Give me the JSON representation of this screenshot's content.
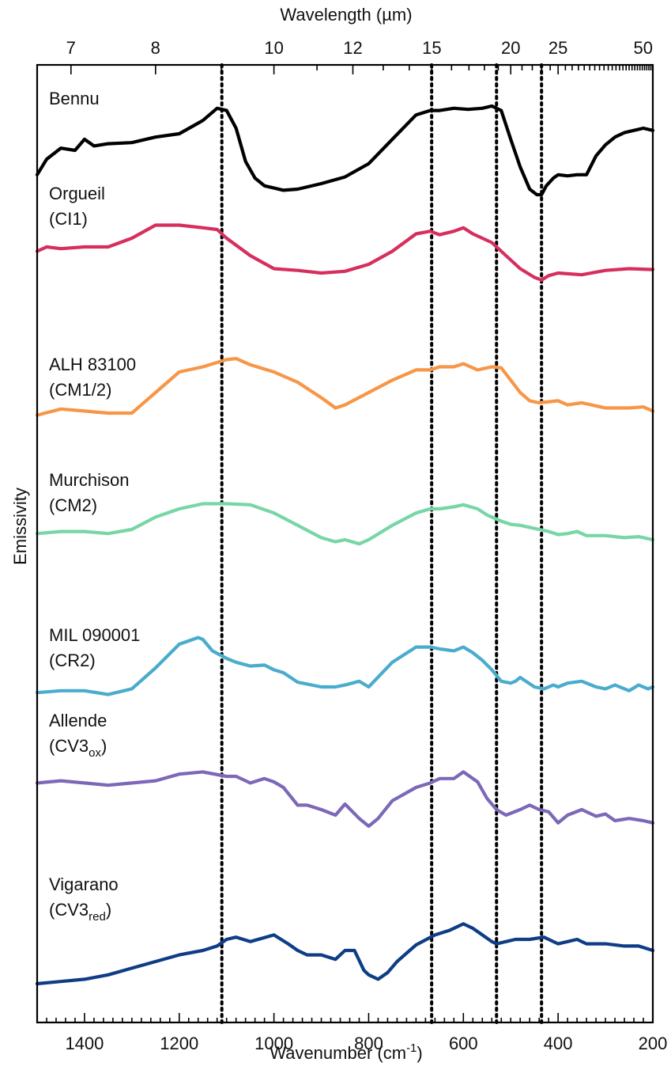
{
  "chart_data": {
    "type": "line",
    "title": "",
    "xlabel": "Wavenumber",
    "xlabel_unit": "(cm",
    "xlabel_unit_sup": "-1",
    "xlabel_unit_close": ")",
    "x2label": "Wavelength (µm)",
    "ylabel": "Emissivity",
    "xlim": [
      1500,
      200
    ],
    "x_reversed": true,
    "x_ticks": [
      1400,
      1200,
      1000,
      800,
      600,
      400,
      200
    ],
    "x2_ticks": [
      7,
      8,
      10,
      12,
      15,
      20,
      25,
      50
    ],
    "y_ticks_shown": false,
    "grid": false,
    "legend": "none (labels placed beside each curve)",
    "reference_lines_wavenumber": [
      1110,
      667,
      530,
      435
    ],
    "reference_line_style": "dotted",
    "series": [
      {
        "name": "Bennu",
        "label_line1": "Bennu",
        "label_line2": "",
        "label_line2_sub": "",
        "color": "#000000",
        "x": [
          1500,
          1480,
          1450,
          1420,
          1400,
          1380,
          1350,
          1300,
          1250,
          1200,
          1150,
          1120,
          1100,
          1080,
          1060,
          1040,
          1020,
          1000,
          980,
          950,
          900,
          850,
          800,
          750,
          700,
          670,
          650,
          620,
          590,
          560,
          540,
          520,
          500,
          480,
          460,
          445,
          435,
          425,
          410,
          400,
          380,
          360,
          340,
          320,
          300,
          280,
          260,
          240,
          220,
          200
        ],
        "y": [
          0.18,
          0.32,
          0.42,
          0.4,
          0.5,
          0.44,
          0.46,
          0.47,
          0.52,
          0.55,
          0.67,
          0.78,
          0.76,
          0.6,
          0.3,
          0.15,
          0.08,
          0.06,
          0.04,
          0.05,
          0.1,
          0.16,
          0.28,
          0.5,
          0.72,
          0.76,
          0.76,
          0.78,
          0.77,
          0.78,
          0.8,
          0.76,
          0.5,
          0.25,
          0.05,
          0.0,
          0.0,
          0.08,
          0.15,
          0.18,
          0.17,
          0.18,
          0.18,
          0.35,
          0.45,
          0.52,
          0.56,
          0.58,
          0.6,
          0.58
        ]
      },
      {
        "name": "Orgueil",
        "label_line1": "Orgueil",
        "label_line2": "(CI1)",
        "label_line2_sub": "",
        "color": "#d62f5e",
        "x": [
          1500,
          1480,
          1450,
          1400,
          1350,
          1300,
          1250,
          1200,
          1150,
          1120,
          1100,
          1050,
          1000,
          950,
          900,
          850,
          800,
          750,
          700,
          670,
          650,
          620,
          600,
          580,
          560,
          540,
          530,
          510,
          480,
          450,
          435,
          420,
          400,
          350,
          300,
          250,
          200
        ],
        "y": [
          0.25,
          0.3,
          0.28,
          0.3,
          0.3,
          0.4,
          0.55,
          0.55,
          0.52,
          0.5,
          0.4,
          0.2,
          0.05,
          0.03,
          0.0,
          0.02,
          0.1,
          0.25,
          0.45,
          0.48,
          0.44,
          0.48,
          0.52,
          0.45,
          0.4,
          0.35,
          0.3,
          0.2,
          0.05,
          -0.05,
          -0.08,
          -0.03,
          0.0,
          -0.02,
          0.03,
          0.05,
          0.04
        ]
      },
      {
        "name": "ALH 83100",
        "label_line1": "ALH 83100",
        "label_line2": "(CM1/2)",
        "label_line2_sub": "",
        "color": "#f79646",
        "x": [
          1500,
          1450,
          1400,
          1350,
          1300,
          1250,
          1200,
          1150,
          1100,
          1080,
          1050,
          1000,
          950,
          900,
          870,
          850,
          800,
          750,
          700,
          670,
          650,
          620,
          600,
          570,
          540,
          520,
          500,
          480,
          460,
          440,
          400,
          380,
          350,
          300,
          250,
          220,
          200
        ],
        "y": [
          0.08,
          0.14,
          0.12,
          0.1,
          0.1,
          0.3,
          0.5,
          0.55,
          0.62,
          0.63,
          0.57,
          0.5,
          0.4,
          0.25,
          0.15,
          0.18,
          0.3,
          0.42,
          0.52,
          0.52,
          0.55,
          0.55,
          0.58,
          0.52,
          0.55,
          0.54,
          0.42,
          0.3,
          0.22,
          0.2,
          0.22,
          0.18,
          0.2,
          0.15,
          0.15,
          0.16,
          0.12
        ]
      },
      {
        "name": "Murchison",
        "label_line1": "Murchison",
        "label_line2": "(CM2)",
        "label_line2_sub": "",
        "color": "#77d6a6",
        "x": [
          1500,
          1450,
          1400,
          1350,
          1300,
          1250,
          1200,
          1150,
          1100,
          1050,
          1000,
          950,
          900,
          870,
          850,
          820,
          800,
          750,
          700,
          670,
          650,
          620,
          600,
          570,
          550,
          520,
          500,
          480,
          460,
          440,
          420,
          400,
          380,
          360,
          340,
          300,
          260,
          230,
          200
        ],
        "y": [
          0.06,
          0.08,
          0.08,
          0.06,
          0.1,
          0.22,
          0.3,
          0.35,
          0.35,
          0.34,
          0.26,
          0.14,
          0.02,
          -0.02,
          0.0,
          -0.04,
          0.0,
          0.14,
          0.26,
          0.3,
          0.3,
          0.32,
          0.34,
          0.3,
          0.24,
          0.18,
          0.15,
          0.14,
          0.12,
          0.1,
          0.08,
          0.05,
          0.06,
          0.08,
          0.04,
          0.04,
          0.02,
          0.03,
          0.0
        ]
      },
      {
        "name": "MIL 090001",
        "label_line1": "MIL 090001",
        "label_line2": "(CR2)",
        "label_line2_sub": "",
        "color": "#4aaccc",
        "x": [
          1500,
          1450,
          1400,
          1350,
          1300,
          1250,
          1200,
          1160,
          1150,
          1130,
          1100,
          1080,
          1050,
          1020,
          1000,
          980,
          950,
          900,
          870,
          850,
          820,
          800,
          750,
          700,
          670,
          650,
          620,
          600,
          580,
          560,
          540,
          520,
          500,
          490,
          480,
          450,
          430,
          410,
          400,
          380,
          350,
          320,
          300,
          280,
          250,
          230,
          210,
          200
        ],
        "y": [
          0.04,
          0.06,
          0.06,
          0.02,
          0.08,
          0.3,
          0.55,
          0.62,
          0.6,
          0.48,
          0.4,
          0.36,
          0.32,
          0.33,
          0.28,
          0.25,
          0.15,
          0.1,
          0.1,
          0.12,
          0.16,
          0.1,
          0.36,
          0.52,
          0.52,
          0.5,
          0.48,
          0.52,
          0.46,
          0.38,
          0.28,
          0.16,
          0.14,
          0.16,
          0.2,
          0.1,
          0.08,
          0.12,
          0.1,
          0.14,
          0.16,
          0.1,
          0.08,
          0.12,
          0.06,
          0.12,
          0.08,
          0.1
        ]
      },
      {
        "name": "Allende",
        "label_line1": "Allende",
        "label_line2": "(CV3",
        "label_line2_sub": "ox",
        "color": "#7d68b8",
        "x": [
          1500,
          1450,
          1400,
          1350,
          1300,
          1250,
          1200,
          1150,
          1100,
          1080,
          1050,
          1020,
          1000,
          980,
          950,
          930,
          900,
          870,
          850,
          820,
          800,
          780,
          750,
          700,
          670,
          650,
          620,
          600,
          570,
          550,
          530,
          510,
          480,
          460,
          440,
          420,
          400,
          380,
          350,
          320,
          300,
          280,
          250,
          220,
          200
        ],
        "y": [
          0.34,
          0.36,
          0.34,
          0.32,
          0.34,
          0.36,
          0.42,
          0.44,
          0.4,
          0.4,
          0.34,
          0.38,
          0.35,
          0.3,
          0.14,
          0.14,
          0.1,
          0.05,
          0.15,
          0.02,
          -0.05,
          0.02,
          0.18,
          0.3,
          0.34,
          0.38,
          0.38,
          0.44,
          0.35,
          0.2,
          0.1,
          0.05,
          0.1,
          0.14,
          0.1,
          0.08,
          -0.02,
          0.05,
          0.1,
          0.04,
          0.06,
          0.0,
          0.02,
          0.0,
          -0.02
        ]
      },
      {
        "name": "Vigarano",
        "label_line1": "Vigarano",
        "label_line2": "(CV3",
        "label_line2_sub": "red",
        "color": "#0e3d86",
        "x": [
          1500,
          1450,
          1400,
          1350,
          1300,
          1250,
          1200,
          1150,
          1120,
          1100,
          1080,
          1050,
          1000,
          970,
          950,
          930,
          900,
          870,
          850,
          830,
          810,
          800,
          780,
          760,
          740,
          700,
          660,
          630,
          600,
          580,
          560,
          540,
          530,
          510,
          490,
          460,
          430,
          420,
          400,
          380,
          360,
          340,
          300,
          260,
          230,
          200
        ],
        "y": [
          -0.4,
          -0.38,
          -0.36,
          -0.32,
          -0.26,
          -0.2,
          -0.14,
          -0.1,
          -0.06,
          0.0,
          0.02,
          -0.02,
          0.04,
          -0.04,
          -0.1,
          -0.14,
          -0.14,
          -0.18,
          -0.1,
          -0.1,
          -0.28,
          -0.32,
          -0.36,
          -0.3,
          -0.2,
          -0.05,
          0.04,
          0.08,
          0.14,
          0.1,
          0.04,
          -0.02,
          -0.04,
          -0.02,
          0.0,
          0.0,
          0.02,
          0.0,
          -0.04,
          -0.02,
          0.0,
          -0.04,
          -0.04,
          -0.06,
          -0.06,
          -0.1
        ]
      }
    ]
  }
}
